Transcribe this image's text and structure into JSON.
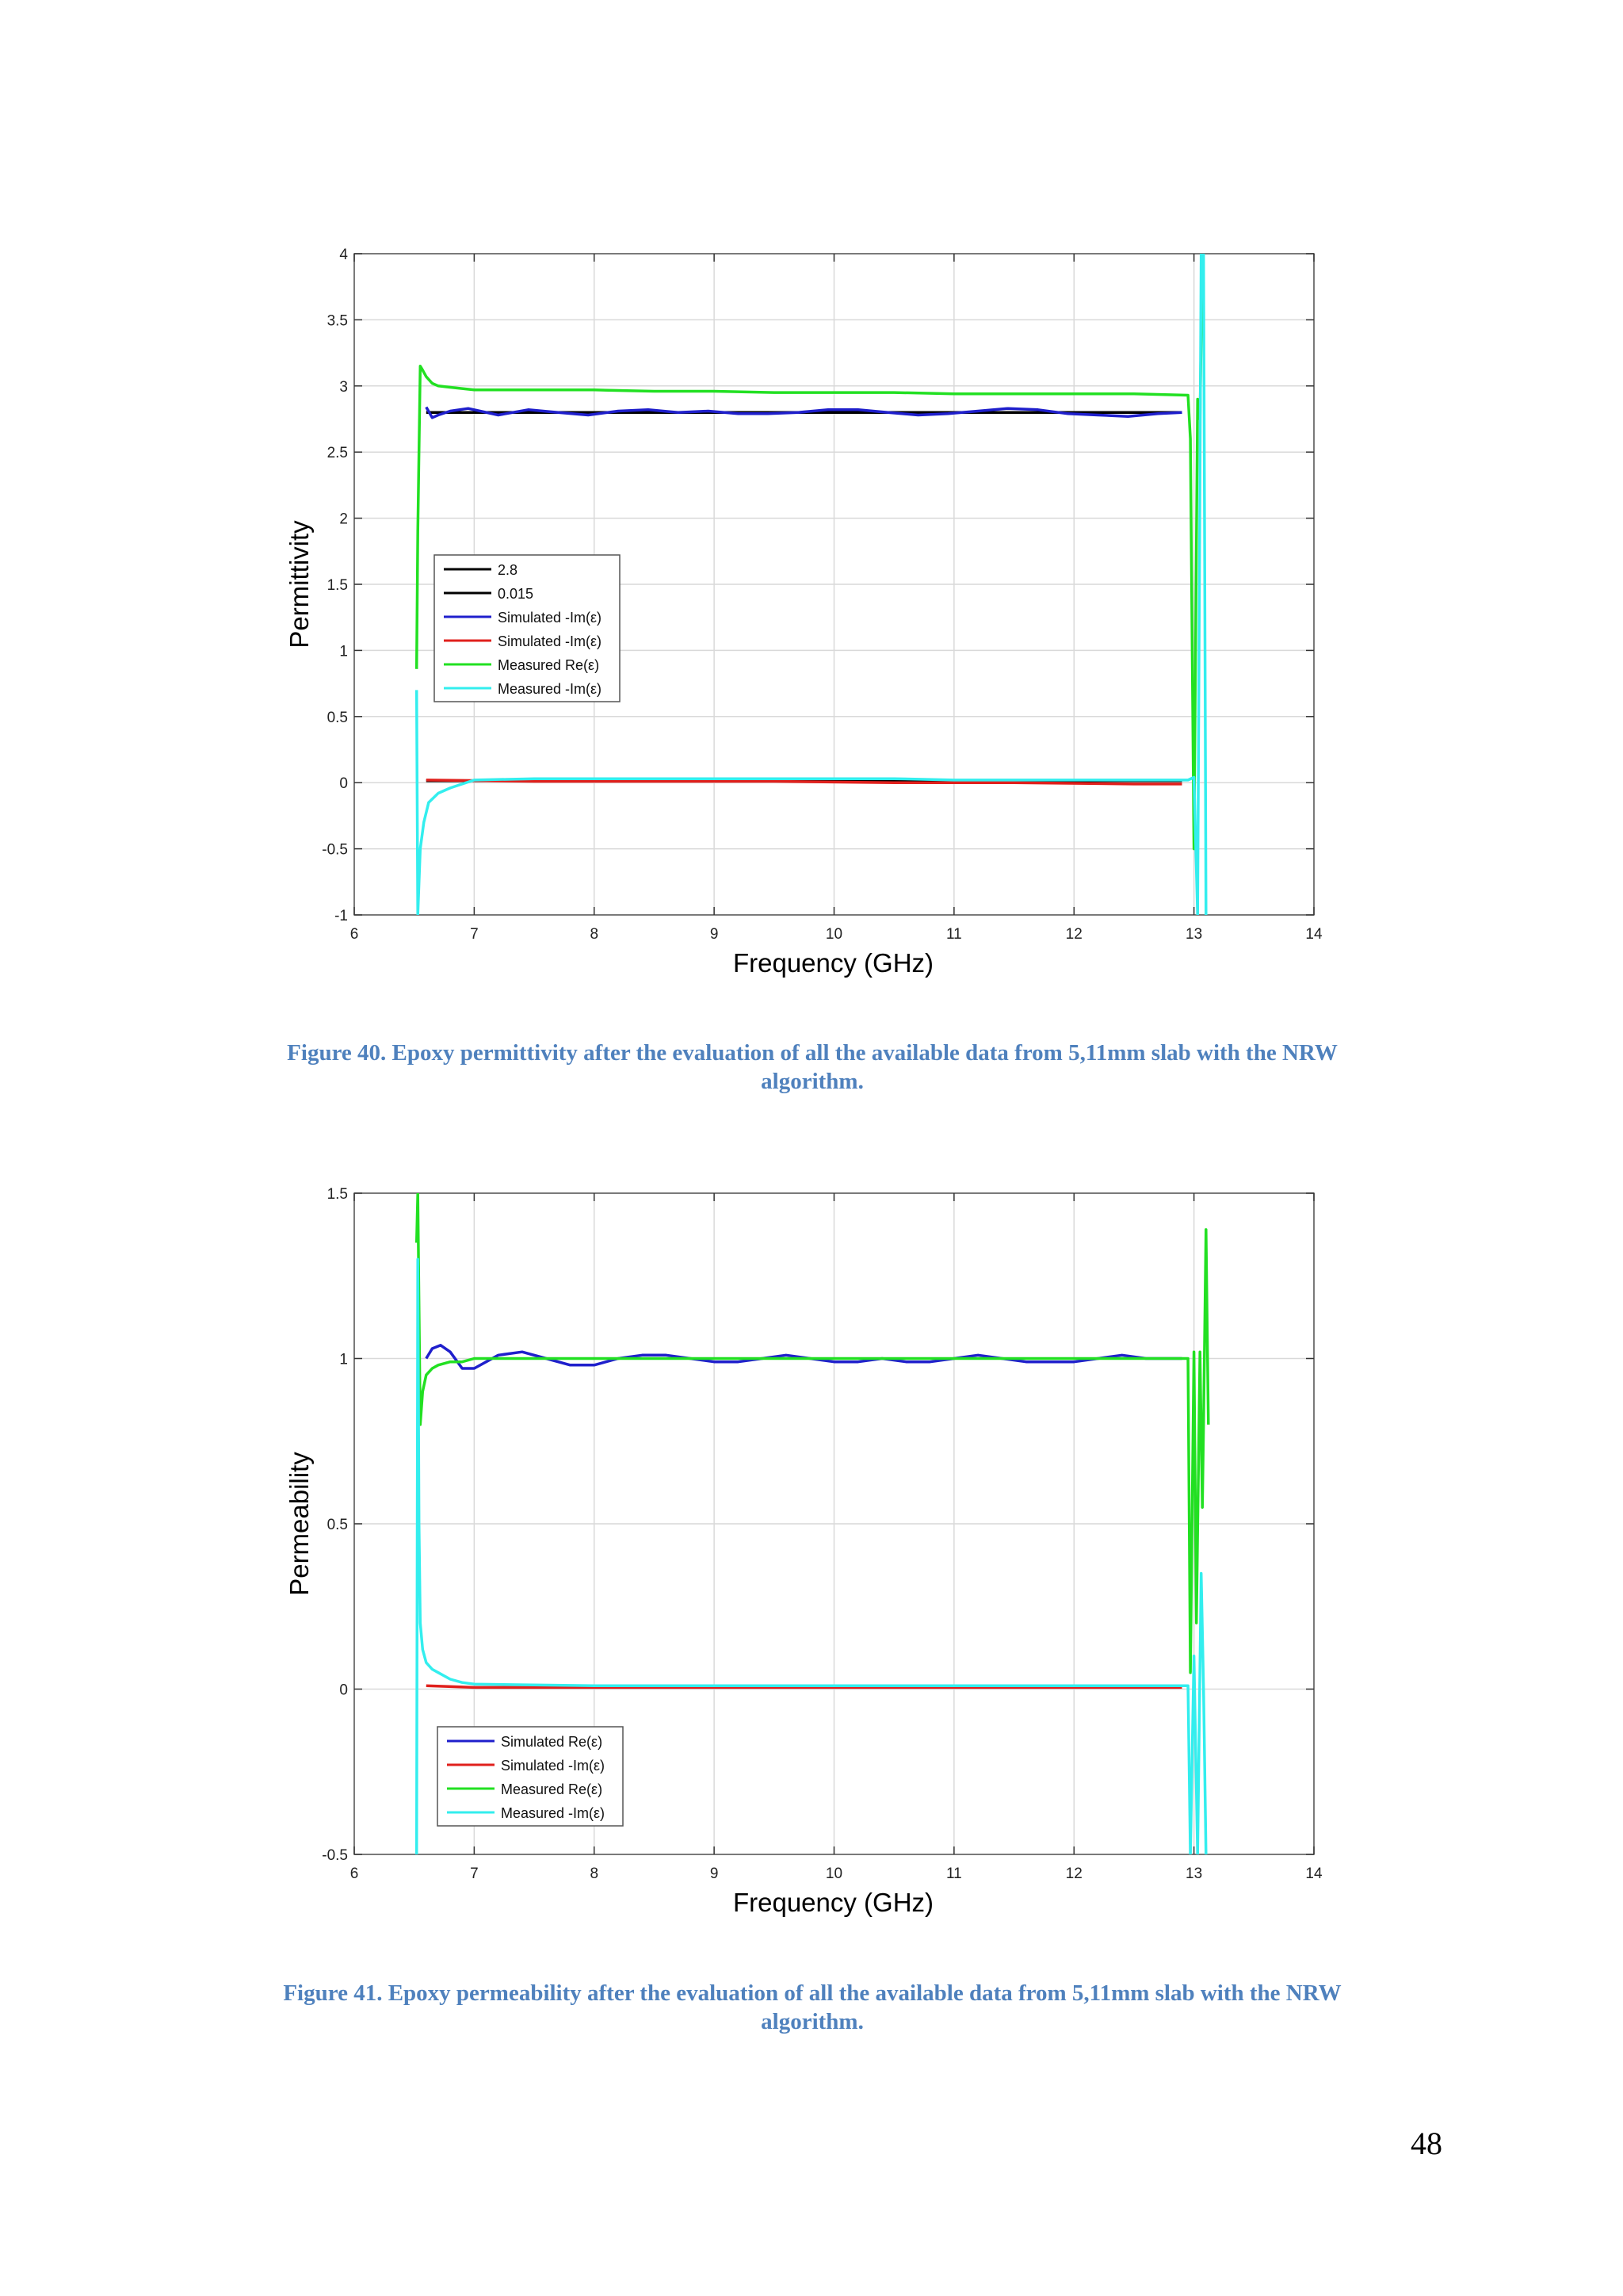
{
  "chart_data": [
    {
      "type": "line",
      "xlabel": "Frequency (GHz)",
      "ylabel": "Permittivity",
      "xlim": [
        6,
        14
      ],
      "ylim": [
        -1,
        4
      ],
      "xticks": [
        "6",
        "7",
        "8",
        "9",
        "10",
        "11",
        "12",
        "13",
        "14"
      ],
      "yticks": [
        "-1",
        "-0.5",
        "0",
        "0.5",
        "1",
        "1.5",
        "2",
        "2.5",
        "3",
        "3.5",
        "4"
      ],
      "grid": true,
      "legend_position": "center-left",
      "series": [
        {
          "name": "2.8",
          "color": "#000000",
          "x": [
            6.6,
            12.9
          ],
          "y": [
            2.8,
            2.8
          ]
        },
        {
          "name": "0.015",
          "color": "#000000",
          "x": [
            6.6,
            12.9
          ],
          "y": [
            0.015,
            0.015
          ]
        },
        {
          "name": "Simulated -Im(ε)",
          "color": "#1f1fcc",
          "x": [
            6.6,
            6.65,
            6.7,
            6.8,
            6.95,
            7.2,
            7.45,
            7.7,
            7.95,
            8.2,
            8.45,
            8.7,
            8.95,
            9.2,
            9.45,
            9.7,
            9.95,
            10.2,
            10.45,
            10.7,
            10.95,
            11.2,
            11.45,
            11.7,
            11.95,
            12.2,
            12.45,
            12.7,
            12.9
          ],
          "y": [
            2.84,
            2.76,
            2.78,
            2.81,
            2.83,
            2.78,
            2.82,
            2.8,
            2.78,
            2.81,
            2.82,
            2.8,
            2.81,
            2.79,
            2.79,
            2.8,
            2.82,
            2.82,
            2.8,
            2.78,
            2.79,
            2.81,
            2.83,
            2.82,
            2.79,
            2.78,
            2.77,
            2.79,
            2.8
          ]
        },
        {
          "name": "Simulated -Im(ε)",
          "color": "#e0201c",
          "x": [
            6.6,
            7.5,
            8.5,
            9.5,
            10.5,
            11.5,
            12.5,
            12.9
          ],
          "y": [
            0.02,
            0.01,
            0.01,
            0.01,
            0.0,
            0.0,
            -0.01,
            -0.01
          ]
        },
        {
          "name": "Measured Re(ε)",
          "color": "#22e022",
          "x": [
            6.52,
            6.53,
            6.55,
            6.57,
            6.6,
            6.65,
            6.7,
            6.8,
            6.9,
            7.0,
            7.5,
            8.0,
            8.5,
            9.0,
            9.5,
            10.0,
            10.5,
            11.0,
            11.5,
            12.0,
            12.5,
            12.95,
            12.97,
            13.0,
            13.03,
            13.05,
            13.07,
            13.08
          ],
          "y": [
            0.86,
            1.9,
            3.15,
            3.12,
            3.07,
            3.02,
            3.0,
            2.99,
            2.98,
            2.97,
            2.97,
            2.97,
            2.96,
            2.96,
            2.95,
            2.95,
            2.95,
            2.94,
            2.94,
            2.94,
            2.94,
            2.93,
            2.6,
            -0.5,
            2.9,
            2.75,
            4.0,
            4.0
          ]
        },
        {
          "name": "Measured -Im(ε)",
          "color": "#33eeee",
          "x": [
            6.52,
            6.53,
            6.55,
            6.58,
            6.62,
            6.7,
            6.8,
            6.9,
            7.0,
            7.5,
            8.0,
            8.5,
            9.0,
            9.5,
            10.0,
            10.5,
            11.0,
            11.5,
            12.0,
            12.5,
            12.95,
            13.0,
            13.03,
            13.06,
            13.08,
            13.1
          ],
          "y": [
            0.7,
            -1.0,
            -0.5,
            -0.3,
            -0.15,
            -0.08,
            -0.04,
            -0.01,
            0.02,
            0.03,
            0.03,
            0.03,
            0.03,
            0.03,
            0.03,
            0.03,
            0.02,
            0.02,
            0.02,
            0.02,
            0.02,
            0.04,
            -1.0,
            4.0,
            4.0,
            -1.0
          ]
        }
      ]
    },
    {
      "type": "line",
      "xlabel": "Frequency (GHz)",
      "ylabel": "Permeability",
      "xlim": [
        6,
        14
      ],
      "ylim": [
        -0.5,
        1.5
      ],
      "xticks": [
        "6",
        "7",
        "8",
        "9",
        "10",
        "11",
        "12",
        "13",
        "14"
      ],
      "yticks": [
        "-0.5",
        "0",
        "0.5",
        "1",
        "1.5"
      ],
      "grid": true,
      "legend_position": "bottom-left",
      "series": [
        {
          "name": "Simulated Re(ε)",
          "color": "#1f1fcc",
          "x": [
            6.6,
            6.65,
            6.72,
            6.8,
            6.9,
            7.0,
            7.2,
            7.4,
            7.6,
            7.8,
            8.0,
            8.2,
            8.4,
            8.6,
            8.8,
            9.0,
            9.2,
            9.4,
            9.6,
            9.8,
            10.0,
            10.2,
            10.4,
            10.6,
            10.8,
            11.0,
            11.2,
            11.4,
            11.6,
            11.8,
            12.0,
            12.2,
            12.4,
            12.6,
            12.8,
            12.9
          ],
          "y": [
            1.0,
            1.03,
            1.04,
            1.02,
            0.97,
            0.97,
            1.01,
            1.02,
            1.0,
            0.98,
            0.98,
            1.0,
            1.01,
            1.01,
            1.0,
            0.99,
            0.99,
            1.0,
            1.01,
            1.0,
            0.99,
            0.99,
            1.0,
            0.99,
            0.99,
            1.0,
            1.01,
            1.0,
            0.99,
            0.99,
            0.99,
            1.0,
            1.01,
            1.0,
            1.0,
            1.0
          ]
        },
        {
          "name": "Simulated -Im(ε)",
          "color": "#e0201c",
          "x": [
            6.6,
            7.0,
            8.0,
            9.0,
            10.0,
            11.0,
            12.0,
            12.9
          ],
          "y": [
            0.01,
            0.005,
            0.005,
            0.005,
            0.005,
            0.005,
            0.005,
            0.005
          ]
        },
        {
          "name": "Measured Re(ε)",
          "color": "#22e022",
          "x": [
            6.52,
            6.53,
            6.55,
            6.57,
            6.6,
            6.65,
            6.7,
            6.8,
            6.9,
            7.0,
            8.0,
            9.0,
            10.0,
            11.0,
            12.0,
            12.95,
            12.97,
            13.0,
            13.02,
            13.05,
            13.07,
            13.08,
            13.1,
            13.12
          ],
          "y": [
            1.35,
            1.5,
            0.8,
            0.9,
            0.95,
            0.97,
            0.98,
            0.99,
            0.99,
            1.0,
            1.0,
            1.0,
            1.0,
            1.0,
            1.0,
            1.0,
            0.05,
            1.02,
            0.2,
            1.02,
            0.55,
            0.8,
            1.39,
            0.8
          ]
        },
        {
          "name": "Measured -Im(ε)",
          "color": "#33eeee",
          "x": [
            6.52,
            6.53,
            6.54,
            6.55,
            6.57,
            6.6,
            6.65,
            6.7,
            6.8,
            6.9,
            7.0,
            8.0,
            9.0,
            10.0,
            11.0,
            12.0,
            12.95,
            12.97,
            13.0,
            13.03,
            13.06,
            13.08,
            13.1
          ],
          "y": [
            -0.5,
            1.3,
            0.5,
            0.2,
            0.12,
            0.08,
            0.06,
            0.05,
            0.03,
            0.02,
            0.015,
            0.01,
            0.01,
            0.01,
            0.01,
            0.01,
            0.01,
            -0.5,
            0.1,
            -0.5,
            0.35,
            0.0,
            -0.5
          ]
        }
      ]
    }
  ],
  "figures": [
    {
      "caption_line1": "Figure 40. Epoxy permittivity after the evaluation of all the available data from 5,11mm slab with the NRW",
      "caption_line2": "algorithm."
    },
    {
      "caption_line1": "Figure 41. Epoxy permeability after the evaluation of all the available data from 5,11mm slab with the NRW",
      "caption_line2": "algorithm."
    }
  ],
  "page_number": "48"
}
